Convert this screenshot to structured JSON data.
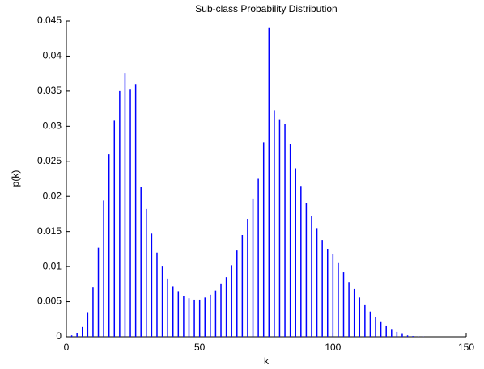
{
  "chart_data": {
    "type": "stem",
    "title": "Sub-class Probability Distribution",
    "x_label": "k",
    "y_label": "p(k)",
    "color": "#0000ff",
    "x": [
      2,
      4,
      6,
      8,
      10,
      12,
      14,
      16,
      18,
      20,
      22,
      24,
      26,
      28,
      30,
      32,
      34,
      36,
      38,
      40,
      42,
      44,
      46,
      48,
      50,
      52,
      54,
      56,
      58,
      60,
      62,
      64,
      66,
      68,
      70,
      72,
      74,
      76,
      78,
      80,
      82,
      84,
      86,
      88,
      90,
      92,
      94,
      96,
      98,
      100,
      102,
      104,
      106,
      108,
      110,
      112,
      114,
      116,
      118,
      120,
      122,
      124,
      126,
      128,
      130,
      132,
      134
    ],
    "values": [
      0.0002,
      0.0005,
      0.0014,
      0.0034,
      0.007,
      0.0127,
      0.0194,
      0.026,
      0.0308,
      0.035,
      0.0375,
      0.0353,
      0.036,
      0.0213,
      0.0182,
      0.0147,
      0.012,
      0.01,
      0.0083,
      0.0072,
      0.0064,
      0.0058,
      0.0055,
      0.0053,
      0.0053,
      0.0056,
      0.006,
      0.0066,
      0.0075,
      0.0085,
      0.0102,
      0.0123,
      0.0145,
      0.0168,
      0.0197,
      0.0225,
      0.0277,
      0.044,
      0.0323,
      0.031,
      0.0303,
      0.0275,
      0.024,
      0.0215,
      0.019,
      0.0172,
      0.0155,
      0.0138,
      0.0125,
      0.0118,
      0.0105,
      0.0092,
      0.0078,
      0.0068,
      0.0056,
      0.0045,
      0.0036,
      0.0028,
      0.0021,
      0.0015,
      0.001,
      0.0007,
      0.0004,
      0.0002,
      0.0001,
      5e-05,
      2e-05
    ],
    "xlim": [
      0,
      150
    ],
    "xticks": [
      0,
      50,
      100,
      150
    ],
    "ylim": [
      0,
      0.045
    ],
    "yticks": [
      0,
      0.005,
      0.01,
      0.015,
      0.02,
      0.025,
      0.03,
      0.035,
      0.04,
      0.045
    ]
  }
}
